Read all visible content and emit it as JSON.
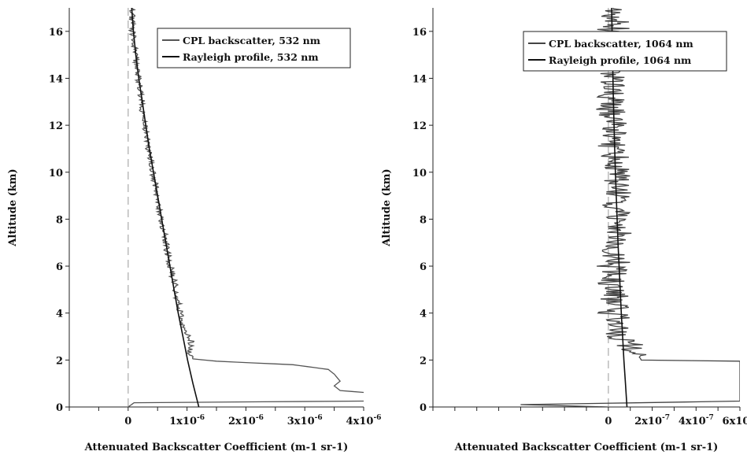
{
  "chart_data": [
    {
      "type": "line",
      "xlabel": "Attenuated Backscatter Coefficient (m-1 sr-1)",
      "ylabel": "Altitude (km)",
      "xlim": [
        -1e-06,
        4e-06
      ],
      "ylim": [
        0,
        17
      ],
      "x_ticks": [
        0,
        1e-06,
        2e-06,
        3e-06,
        4e-06
      ],
      "x_tick_labels": [
        "0",
        "1x10",
        "2x10",
        "3x10",
        "4x10"
      ],
      "x_tick_exponent": "-6",
      "y_ticks": [
        0,
        2,
        4,
        6,
        8,
        10,
        12,
        14,
        16
      ],
      "y_tick_labels": [
        "0",
        "2",
        "4",
        "6",
        "8",
        "10",
        "12",
        "14",
        "16"
      ],
      "zero_line": "dashed",
      "legend_position": "top-right",
      "series": [
        {
          "name": "CPL backscatter, 532 nm",
          "color": "#555555",
          "noise": 4e-08,
          "points": [
            [
              0,
              0
            ],
            [
              1e-07,
              0.18
            ],
            [
              4.5e-06,
              0.26
            ],
            [
              4e-06,
              0.62
            ],
            [
              3.6e-06,
              0.7
            ],
            [
              3.5e-06,
              0.9
            ],
            [
              3.6e-06,
              1.1
            ],
            [
              3.5e-06,
              1.4
            ],
            [
              3.4e-06,
              1.6
            ],
            [
              2.8e-06,
              1.8
            ],
            [
              1.5e-06,
              1.95
            ],
            [
              1.1e-06,
              2.05
            ],
            [
              1.05e-06,
              2.3
            ],
            [
              1.08e-06,
              2.8
            ],
            [
              9.5e-07,
              3.2
            ],
            [
              8.8e-07,
              4
            ],
            [
              8e-07,
              5
            ],
            [
              7.2e-07,
              6
            ],
            [
              6.4e-07,
              7
            ],
            [
              5.6e-07,
              8
            ],
            [
              4.9e-07,
              9
            ],
            [
              4.2e-07,
              10
            ],
            [
              3.5e-07,
              11
            ],
            [
              2.9e-07,
              12
            ],
            [
              2.3e-07,
              13
            ],
            [
              1.7e-07,
              14
            ],
            [
              1.2e-07,
              15
            ],
            [
              8e-08,
              16
            ],
            [
              6e-08,
              17
            ]
          ]
        },
        {
          "name": "Rayleigh profile, 532 nm",
          "color": "#111111",
          "points": [
            [
              1.2e-06,
              0
            ],
            [
              1.1e-06,
              1
            ],
            [
              1.01e-06,
              2
            ],
            [
              9.3e-07,
              3
            ],
            [
              8.5e-07,
              4
            ],
            [
              7.8e-07,
              5
            ],
            [
              7.1e-07,
              6
            ],
            [
              6.4e-07,
              7
            ],
            [
              5.7e-07,
              8
            ],
            [
              5e-07,
              9
            ],
            [
              4.3e-07,
              10
            ],
            [
              3.6e-07,
              11
            ],
            [
              3e-07,
              12
            ],
            [
              2.4e-07,
              13
            ],
            [
              1.8e-07,
              14
            ],
            [
              1.3e-07,
              15
            ],
            [
              9e-08,
              16
            ],
            [
              6e-08,
              17
            ]
          ]
        }
      ]
    },
    {
      "type": "line",
      "xlabel": "Attenuated Backscatter Coefficient (m-1 sr-1)",
      "ylabel": "Altitude (km)",
      "xlim": [
        -8e-07,
        6e-07
      ],
      "ylim": [
        0,
        17
      ],
      "x_ticks": [
        0,
        2e-07,
        4e-07,
        6e-07
      ],
      "x_tick_labels": [
        "0",
        "2x10",
        "4x10",
        "6x10"
      ],
      "x_tick_exponent": "-7",
      "y_ticks": [
        0,
        2,
        4,
        6,
        8,
        10,
        12,
        14,
        16
      ],
      "y_tick_labels": [
        "0",
        "2",
        "4",
        "6",
        "8",
        "10",
        "12",
        "14",
        "16"
      ],
      "zero_line": "dashed",
      "legend_position": "top-right",
      "series": [
        {
          "name": "CPL backscatter, 1064 nm",
          "color": "#444444",
          "noise": 5e-08,
          "points": [
            [
              0,
              0
            ],
            [
              -4e-07,
              0.1
            ],
            [
              6e-07,
              0.25
            ],
            [
              6e-07,
              1.95
            ],
            [
              1.5e-07,
              2.0
            ],
            [
              1.2e-07,
              2.5
            ],
            [
              5e-08,
              3.0
            ],
            [
              3e-08,
              4
            ],
            [
              2e-08,
              5
            ],
            [
              2e-08,
              6
            ],
            [
              3e-08,
              7
            ],
            [
              4e-08,
              8
            ],
            [
              3e-08,
              9
            ],
            [
              4e-08,
              10
            ],
            [
              3e-08,
              11
            ],
            [
              2e-08,
              12
            ],
            [
              2e-08,
              13
            ],
            [
              2e-08,
              14
            ],
            [
              2e-08,
              15
            ],
            [
              2e-08,
              16
            ],
            [
              2e-08,
              17
            ]
          ]
        },
        {
          "name": "Rayleigh profile, 1064 nm",
          "color": "#111111",
          "points": [
            [
              8.5e-08,
              0
            ],
            [
              7.8e-08,
              1
            ],
            [
              7.1e-08,
              2
            ],
            [
              6.5e-08,
              3
            ],
            [
              5.9e-08,
              4
            ],
            [
              5.4e-08,
              5
            ],
            [
              4.9e-08,
              6
            ],
            [
              4.4e-08,
              7
            ],
            [
              4e-08,
              8
            ],
            [
              3.6e-08,
              9
            ],
            [
              3.2e-08,
              10
            ],
            [
              2.9e-08,
              11
            ],
            [
              2.6e-08,
              12
            ],
            [
              2.3e-08,
              13
            ],
            [
              2.1e-08,
              14
            ],
            [
              1.9e-08,
              15
            ],
            [
              1.7e-08,
              16
            ],
            [
              1.5e-08,
              17
            ]
          ]
        }
      ]
    }
  ]
}
